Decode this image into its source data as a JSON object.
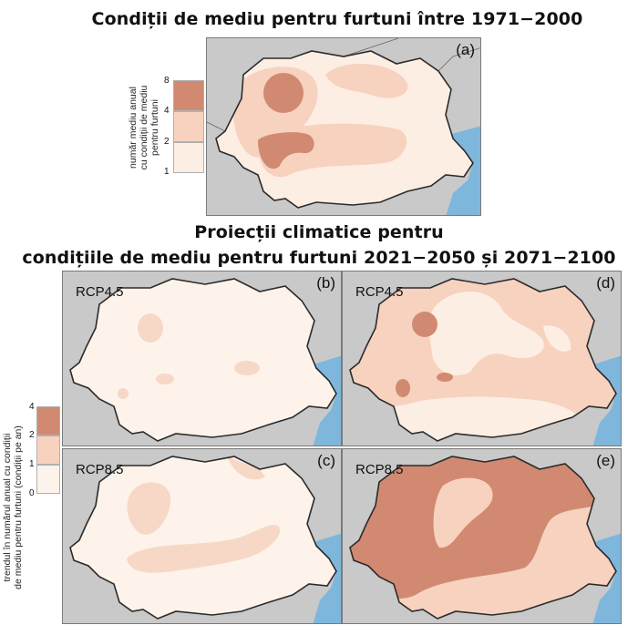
{
  "titles": {
    "top": "Condiții de mediu pentru furtuni între 1971−2000",
    "projections_line1": "Proiecții climatice pentru",
    "projections_line2": "condițiile de mediu pentru furtuni 2021−2050 și 2071−2100"
  },
  "legend_top": {
    "label_lines": [
      "număr mediu anual",
      "cu condiții de mediu",
      "pentru furtuni"
    ],
    "ticks": [
      "8",
      "4",
      "2",
      "1"
    ],
    "colors": [
      "#d18a71",
      "#f7d2bf",
      "#fdeee3"
    ]
  },
  "legend_bottom": {
    "label_lines": [
      "trendul în numărul anual cu condiții",
      "de mediu pentru furtuni (condiții pe an)"
    ],
    "ticks": [
      "4",
      "2",
      "1",
      "0"
    ],
    "colors": [
      "#d18a71",
      "#f7d2bf",
      "#fdf3ea"
    ]
  },
  "panels": {
    "a": {
      "letter": "(a)",
      "scenario": ""
    },
    "b": {
      "letter": "(b)",
      "scenario": "RCP4.5"
    },
    "c": {
      "letter": "(c)",
      "scenario": "RCP8.5"
    },
    "d": {
      "letter": "(d)",
      "scenario": "RCP4.5"
    },
    "e": {
      "letter": "(e)",
      "scenario": "RCP8.5"
    }
  },
  "colors": {
    "background_land": "#c9c9c9",
    "sea": "#7fb7dc",
    "class_low": "#fdeee3",
    "class_mid": "#f7d2bf",
    "class_high": "#d18a71",
    "border": "#2b2b2b"
  }
}
